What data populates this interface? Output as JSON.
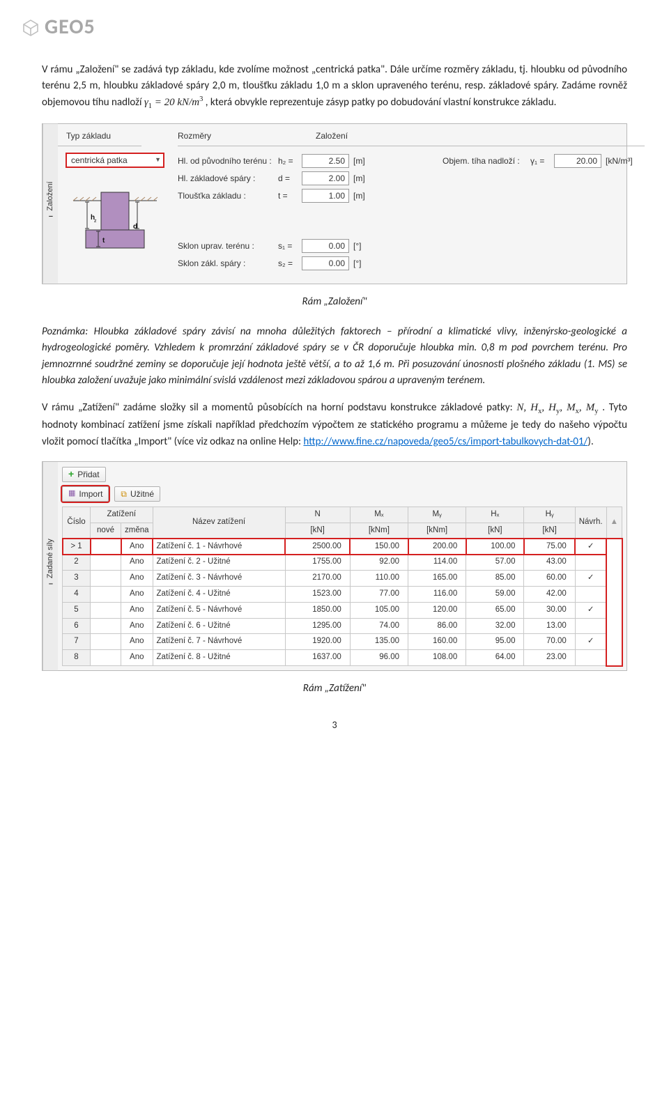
{
  "logo_text": "GEO5",
  "p1": "V rámu „Založení\" se zadává typ základu, kde zvolíme možnost „centrická patka\". Dále určíme rozměry základu, tj. hloubku od původního terénu 2,5 m, hloubku základové spáry 2,0 m, tloušťku základu 1,0 m a sklon upraveného terénu, resp. základové spáry. Zadáme rovněž objemovou tíhu nadloží ",
  "p1_eqn_html": "γ<sub>1</sub> = 20 kN/m<sup>3</sup>",
  "p1_tail": " , která obvykle reprezentuje zásyp patky po dobudování vlastní konstrukce základu.",
  "zal": {
    "side_tab": "Založení",
    "col1_label": "Typ základu",
    "select_value": "centrická patka",
    "col2_label": "Rozměry",
    "rows": [
      {
        "lbl": "Hl. od původního terénu :",
        "sym": "h₂ =",
        "val": "2.50",
        "unit": "[m]"
      },
      {
        "lbl": "Hl. základové spáry :",
        "sym": "d =",
        "val": "2.00",
        "unit": "[m]"
      },
      {
        "lbl": "Tloušťka základu :",
        "sym": "t =",
        "val": "1.00",
        "unit": "[m]"
      },
      {
        "lbl": "Sklon uprav. terénu :",
        "sym": "s₁ =",
        "val": "0.00",
        "unit": "[°]"
      },
      {
        "lbl": "Sklon zákl. spáry :",
        "sym": "s₂ =",
        "val": "0.00",
        "unit": "[°]"
      }
    ],
    "col3_label": "Založení",
    "obj_lbl": "Objem. tíha nadloží :",
    "obj_sym": "γ₁ =",
    "obj_val": "20.00",
    "obj_unit": "[kN/m³]"
  },
  "cap1": "Rám „Založení\"",
  "note1": "Poznámka: Hloubka základové spáry závisí na mnoha důležitých faktorech – přírodní a klimatické vlivy, inženýrsko-geologické a hydrogeologické poměry. Vzhledem k promrzání základové spáry se v ČR doporučuje hloubka min. 0,8 m pod povrchem terénu. Pro jemnozrnné soudržné zeminy se doporučuje její hodnota ještě větší, a to až 1,6 m. Při posuzování únosnosti plošného základu (1. MS) se hloubka založení uvažuje jako minimální svislá vzdálenost mezi základovou spárou a upraveným terénem.",
  "p2_pre": "V rámu „Zatížení\" zadáme složky sil a momentů působících na horní podstavu konstrukce základové patky: ",
  "p2_math": "N, Hₓ, Hᵧ, Mₓ, Mᵧ",
  "p2_post": ". Tyto hodnoty kombinací zatížení jsme získali například předchozím výpočtem ze statického programu a můžeme je tedy do našeho výpočtu vložit pomocí tlačítka „Import\" (více viz odkaz na online Help: ",
  "link_text": "http://www.fine.cz/napoveda/geo5/cs/import-tabulkovych-dat-01/",
  "p2_end": ").",
  "zat": {
    "side_tab": "Zadané síly",
    "btn_add": "Přidat",
    "btn_import": "Import",
    "btn_svc": "Užitné",
    "cols": {
      "cislo": "Číslo",
      "zat_nove": "Zatížení\nnové",
      "zat_zm": "změna",
      "nazev": "Název zatížení",
      "n": "N",
      "mx": "Mₓ",
      "my": "Mᵧ",
      "hx": "Hₓ",
      "hy": "Hᵧ",
      "navrh": "Návrh.",
      "kn": "[kN]",
      "knm": "[kNm]"
    },
    "rows": [
      {
        "i": "1",
        "z": "Ano",
        "name": "Zatížení č. 1 - Návrhové",
        "n": "2500.00",
        "mx": "150.00",
        "my": "200.00",
        "hx": "100.00",
        "hy": "75.00",
        "ck": true,
        "hl": true
      },
      {
        "i": "2",
        "z": "Ano",
        "name": "Zatížení č. 2 - Užitné",
        "n": "1755.00",
        "mx": "92.00",
        "my": "114.00",
        "hx": "57.00",
        "hy": "43.00",
        "ck": false
      },
      {
        "i": "3",
        "z": "Ano",
        "name": "Zatížení č. 3 - Návrhové",
        "n": "2170.00",
        "mx": "110.00",
        "my": "165.00",
        "hx": "85.00",
        "hy": "60.00",
        "ck": true
      },
      {
        "i": "4",
        "z": "Ano",
        "name": "Zatížení č. 4 - Užitné",
        "n": "1523.00",
        "mx": "77.00",
        "my": "116.00",
        "hx": "59.00",
        "hy": "42.00",
        "ck": false
      },
      {
        "i": "5",
        "z": "Ano",
        "name": "Zatížení č. 5 - Návrhové",
        "n": "1850.00",
        "mx": "105.00",
        "my": "120.00",
        "hx": "65.00",
        "hy": "30.00",
        "ck": true
      },
      {
        "i": "6",
        "z": "Ano",
        "name": "Zatížení č. 6 - Užitné",
        "n": "1295.00",
        "mx": "74.00",
        "my": "86.00",
        "hx": "32.00",
        "hy": "13.00",
        "ck": false
      },
      {
        "i": "7",
        "z": "Ano",
        "name": "Zatížení č. 7 - Návrhové",
        "n": "1920.00",
        "mx": "135.00",
        "my": "160.00",
        "hx": "95.00",
        "hy": "70.00",
        "ck": true
      },
      {
        "i": "8",
        "z": "Ano",
        "name": "Zatížení č. 8 - Užitné",
        "n": "1637.00",
        "mx": "96.00",
        "my": "108.00",
        "hx": "64.00",
        "hy": "23.00",
        "ck": false
      }
    ]
  },
  "cap2": "Rám „Zatížení\"",
  "page_num": "3"
}
